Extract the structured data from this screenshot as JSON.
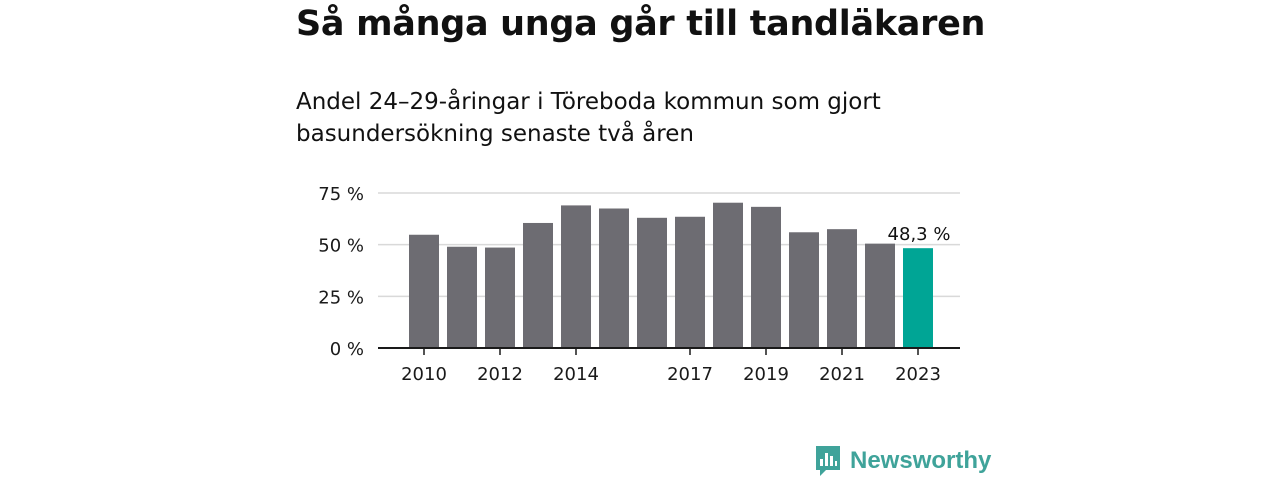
{
  "title": "Så många unga går till tandläkaren",
  "subtitle": "Andel 24–29-åringar i Töreboda kommun som gjort basundersökning senaste två åren",
  "brand": {
    "name": "Newsworthy",
    "logo_icon": "bar-chart-bubble-icon",
    "color": "#3fa39a"
  },
  "chart_data": {
    "type": "bar",
    "title": "Så många unga går till tandläkaren",
    "subtitle": "Andel 24–29-åringar i Töreboda kommun som gjort basundersökning senaste två åren",
    "xlabel": "",
    "ylabel": "",
    "categories": [
      "2010",
      "2011",
      "2012",
      "2013",
      "2014",
      "2015",
      "2016",
      "2017",
      "2018",
      "2019",
      "2020",
      "2021",
      "2022",
      "2023"
    ],
    "x_tick_labels": [
      "2010",
      "",
      "2012",
      "",
      "2014",
      "",
      "",
      "2017",
      "",
      "2019",
      "",
      "2021",
      "",
      "2023"
    ],
    "values": [
      54.8,
      49.0,
      48.6,
      60.5,
      69.0,
      67.5,
      63.0,
      63.5,
      70.3,
      68.3,
      56.0,
      57.5,
      50.5,
      48.3
    ],
    "ylim": [
      0,
      75
    ],
    "yticks": [
      0,
      25,
      50,
      75
    ],
    "ytick_labels": [
      "0 %",
      "25 %",
      "50 %",
      "75 %"
    ],
    "grid": true,
    "bar_color": "#6d6c72",
    "highlight_color": "#00a595",
    "highlight_index": 13,
    "annotation": {
      "index": 13,
      "text": "48,3 %"
    }
  }
}
